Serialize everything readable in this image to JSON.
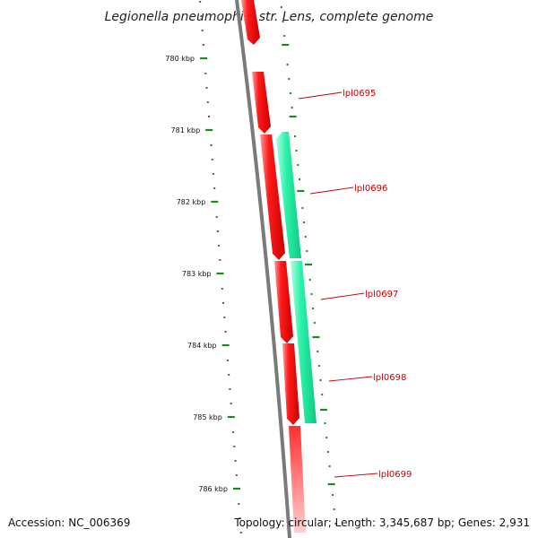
{
  "title": "Legionella pneumophila str. Lens, complete genome",
  "footer": {
    "accession": "Accession: NC_006369",
    "summary": "Topology: circular; Length: 3,345,687 bp; Genes: 2,931"
  },
  "colors": {
    "backbone": "#7a7a7a",
    "forward_gene": "#ff0000",
    "reverse_gene": "#22f0a8",
    "tick": "#1a8a1a",
    "label": "#cc0000"
  },
  "tick_labels": [
    "780 kbp",
    "781 kbp",
    "782 kbp",
    "783 kbp",
    "784 kbp",
    "785 kbp",
    "786 kbp"
  ],
  "genes": [
    {
      "id": "lpl0695"
    },
    {
      "id": "lpl0696"
    },
    {
      "id": "lpl0697"
    },
    {
      "id": "lpl0698"
    },
    {
      "id": "lpl0699"
    }
  ]
}
